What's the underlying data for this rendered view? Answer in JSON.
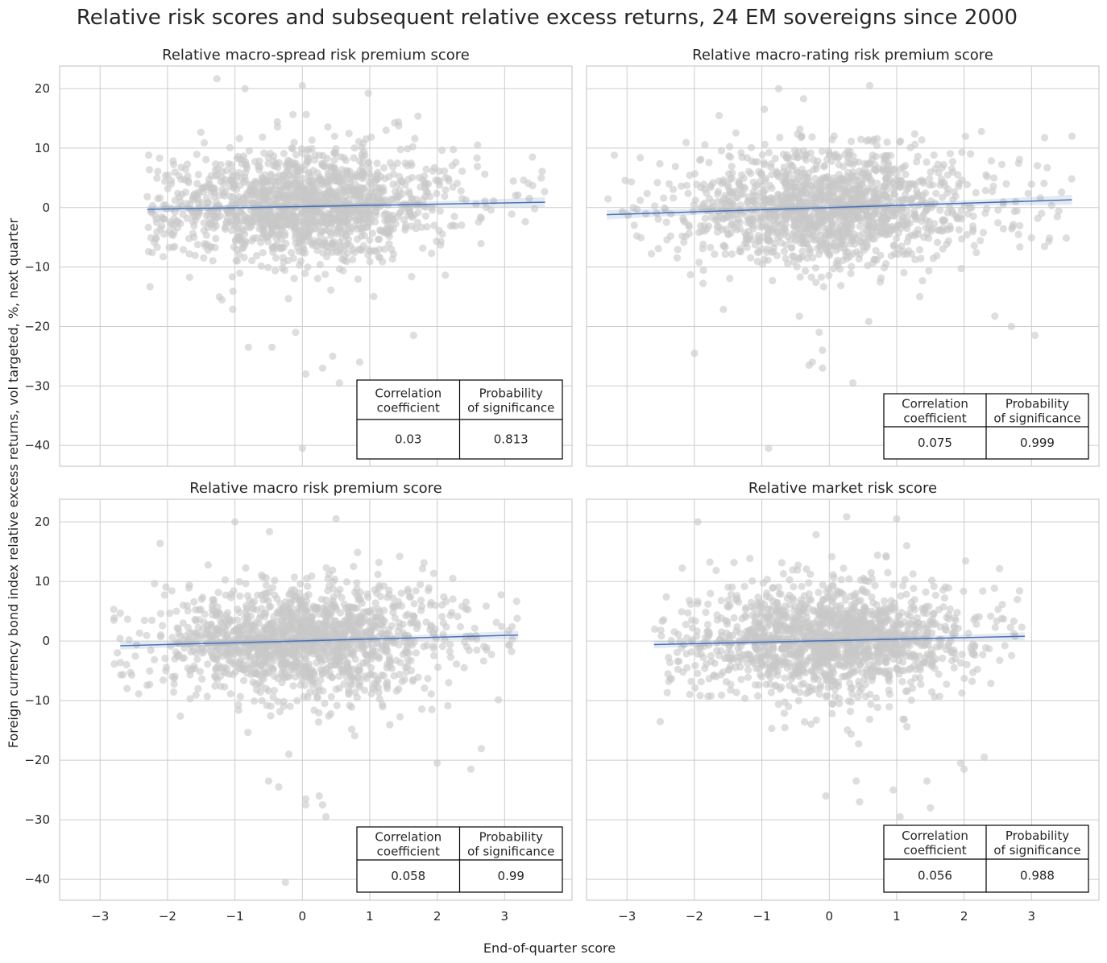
{
  "figure": {
    "suptitle": "Relative risk scores and subsequent relative excess returns, 24 EM sovereigns since 2000",
    "xlabel": "End-of-quarter score",
    "ylabel": "Foreign currency bond index relative excess returns, vol targeted, %, next quarter",
    "colors": {
      "points": "#c8c8c8",
      "regression": "#4c72b0",
      "grid": "#cccccc"
    },
    "table_headers": [
      "Correlation\ncoefficient",
      "Probability\nof significance"
    ]
  },
  "chart_data": [
    {
      "type": "scatter",
      "title": "Relative macro-spread risk premium score",
      "xlim": [
        -3.6,
        4.0
      ],
      "ylim": [
        -43.5,
        23.8
      ],
      "xticks": [
        -3,
        -2,
        -1,
        0,
        1,
        2,
        3
      ],
      "yticks": [
        20,
        10,
        0,
        -10,
        -20,
        -30,
        -40
      ],
      "regression": {
        "x": [
          -2.3,
          3.6
        ],
        "y": [
          -0.3,
          0.9
        ]
      },
      "correlation": "0.03",
      "probability": "0.813",
      "points_summary": {
        "n": 1500,
        "x_range": [
          -2.3,
          3.6
        ],
        "y_range": [
          -40.5,
          20.5
        ]
      },
      "outliers": [
        [
          -0.1,
          -21
        ],
        [
          0.05,
          -28
        ],
        [
          0.3,
          -27
        ],
        [
          0.45,
          -25
        ],
        [
          0.55,
          -29.5
        ],
        [
          0.85,
          -26
        ],
        [
          1.65,
          -21.5
        ],
        [
          -0.45,
          -23.5
        ],
        [
          -0.8,
          -23.5
        ],
        [
          0,
          -40.5
        ],
        [
          -0.85,
          20
        ],
        [
          0,
          20.5
        ],
        [
          2.6,
          10.5
        ]
      ]
    },
    {
      "type": "scatter",
      "title": "Relative macro-rating risk premium score",
      "xlim": [
        -3.6,
        4.0
      ],
      "ylim": [
        -43.5,
        23.8
      ],
      "xticks": [
        -3,
        -2,
        -1,
        0,
        1,
        2,
        3
      ],
      "yticks": [
        20,
        10,
        0,
        -10,
        -20,
        -30,
        -40
      ],
      "regression": {
        "x": [
          -3.3,
          3.6
        ],
        "y": [
          -1.2,
          1.3
        ]
      },
      "correlation": "0.075",
      "probability": "0.999",
      "points_summary": {
        "n": 1500,
        "x_range": [
          -3.3,
          3.6
        ],
        "y_range": [
          -40.5,
          20.5
        ]
      },
      "outliers": [
        [
          -2.0,
          -24.5
        ],
        [
          -0.3,
          -26.5
        ],
        [
          -0.25,
          -26
        ],
        [
          -0.1,
          -27
        ],
        [
          -0.1,
          -24
        ],
        [
          0.35,
          -29.5
        ],
        [
          -0.15,
          -21
        ],
        [
          2.7,
          -20
        ],
        [
          3.05,
          -21.5
        ],
        [
          -0.9,
          -40.5
        ],
        [
          -0.75,
          20
        ],
        [
          0.6,
          20.5
        ],
        [
          3.6,
          12
        ]
      ]
    },
    {
      "type": "scatter",
      "title": "Relative macro risk premium score",
      "xlim": [
        -3.6,
        4.0
      ],
      "ylim": [
        -43.5,
        23.8
      ],
      "xticks": [
        -3,
        -2,
        -1,
        0,
        1,
        2,
        3
      ],
      "yticks": [
        20,
        10,
        0,
        -10,
        -20,
        -30,
        -40
      ],
      "regression": {
        "x": [
          -2.7,
          3.2
        ],
        "y": [
          -0.8,
          1.0
        ]
      },
      "correlation": "0.058",
      "probability": "0.99",
      "points_summary": {
        "n": 1500,
        "x_range": [
          -2.8,
          3.2
        ],
        "y_range": [
          -40.5,
          20.5
        ]
      },
      "outliers": [
        [
          -0.5,
          -23.5
        ],
        [
          -0.35,
          -24.5
        ],
        [
          -0.2,
          -19
        ],
        [
          0.05,
          -26.5
        ],
        [
          0.05,
          -27.5
        ],
        [
          0.25,
          -26
        ],
        [
          0.3,
          -27.5
        ],
        [
          0.35,
          -29.5
        ],
        [
          2.0,
          -20.5
        ],
        [
          2.5,
          -21.5
        ],
        [
          -0.25,
          -40.5
        ],
        [
          -1.0,
          20
        ],
        [
          0.5,
          20.5
        ]
      ]
    },
    {
      "type": "scatter",
      "title": "Relative market risk score",
      "xlim": [
        -3.6,
        4.0
      ],
      "ylim": [
        -43.5,
        23.8
      ],
      "xticks": [
        -3,
        -2,
        -1,
        0,
        1,
        2,
        3
      ],
      "yticks": [
        20,
        10,
        0,
        -10,
        -20,
        -30,
        -40
      ],
      "regression": {
        "x": [
          -2.6,
          2.9
        ],
        "y": [
          -0.6,
          0.8
        ]
      },
      "correlation": "0.056",
      "probability": "0.988",
      "points_summary": {
        "n": 1500,
        "x_range": [
          -2.6,
          2.9
        ],
        "y_range": [
          -40.5,
          20.5
        ]
      },
      "outliers": [
        [
          -0.05,
          -26
        ],
        [
          0.45,
          -27
        ],
        [
          0.95,
          -25
        ],
        [
          1.05,
          -29.5
        ],
        [
          1.45,
          -23.5
        ],
        [
          1.5,
          -28
        ],
        [
          1.95,
          -20.5
        ],
        [
          2.0,
          -21.5
        ],
        [
          2.3,
          -19.5
        ],
        [
          0.4,
          -23.5
        ],
        [
          -1.95,
          20
        ],
        [
          1.0,
          20.5
        ],
        [
          1.15,
          16
        ]
      ]
    }
  ]
}
